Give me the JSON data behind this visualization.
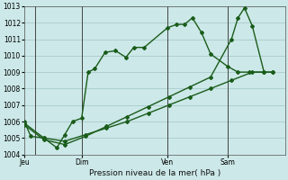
{
  "title": "Pression niveau de la mer( hPa )",
  "bg_color": "#cce8e8",
  "grid_color": "#aacccc",
  "line_color": "#1a5c1a",
  "ylim": [
    1004,
    1013
  ],
  "yticks": [
    1004,
    1005,
    1006,
    1007,
    1008,
    1009,
    1010,
    1011,
    1012,
    1013
  ],
  "xtick_labels": [
    "Jeu",
    "Dim",
    "Ven",
    "Sam"
  ],
  "xtick_positions": [
    0.0,
    0.22,
    0.55,
    0.78
  ],
  "vline_positions": [
    0.04,
    0.22,
    0.55,
    0.78
  ],
  "xlim": [
    0.0,
    1.0
  ],
  "series": [
    {
      "x": [
        0.0,
        0.025,
        0.075,
        0.125,
        0.155,
        0.185,
        0.22,
        0.245,
        0.27,
        0.31,
        0.35,
        0.39,
        0.42,
        0.46,
        0.55,
        0.585,
        0.615,
        0.645,
        0.68,
        0.715,
        0.78,
        0.82,
        0.865,
        0.92
      ],
      "y": [
        1006.0,
        1005.1,
        1005.0,
        1004.4,
        1005.2,
        1006.0,
        1006.2,
        1009.0,
        1009.2,
        1010.2,
        1010.3,
        1009.9,
        1010.5,
        1010.5,
        1011.7,
        1011.9,
        1011.9,
        1012.3,
        1011.4,
        1010.1,
        1009.35,
        1009.0,
        1009.0,
        1009.0
      ],
      "marker": "D",
      "markersize": 2.0,
      "linewidth": 1.0
    },
    {
      "x": [
        0.0,
        0.075,
        0.155,
        0.235,
        0.315,
        0.395,
        0.475,
        0.555,
        0.635,
        0.715,
        0.795,
        0.875,
        0.955
      ],
      "y": [
        1005.9,
        1005.0,
        1004.8,
        1005.2,
        1005.6,
        1006.0,
        1006.5,
        1007.0,
        1007.5,
        1008.0,
        1008.5,
        1009.0,
        1009.0
      ],
      "marker": "D",
      "markersize": 2.0,
      "linewidth": 1.0
    },
    {
      "x": [
        0.0,
        0.075,
        0.155,
        0.235,
        0.315,
        0.395,
        0.475,
        0.555,
        0.635,
        0.715,
        0.795,
        0.82,
        0.845,
        0.875,
        0.92,
        0.955
      ],
      "y": [
        1005.8,
        1004.9,
        1004.6,
        1005.1,
        1005.7,
        1006.3,
        1006.9,
        1007.5,
        1008.1,
        1008.7,
        1011.0,
        1012.3,
        1012.9,
        1011.8,
        1009.0,
        1009.0
      ],
      "marker": "D",
      "markersize": 2.0,
      "linewidth": 1.0
    }
  ]
}
